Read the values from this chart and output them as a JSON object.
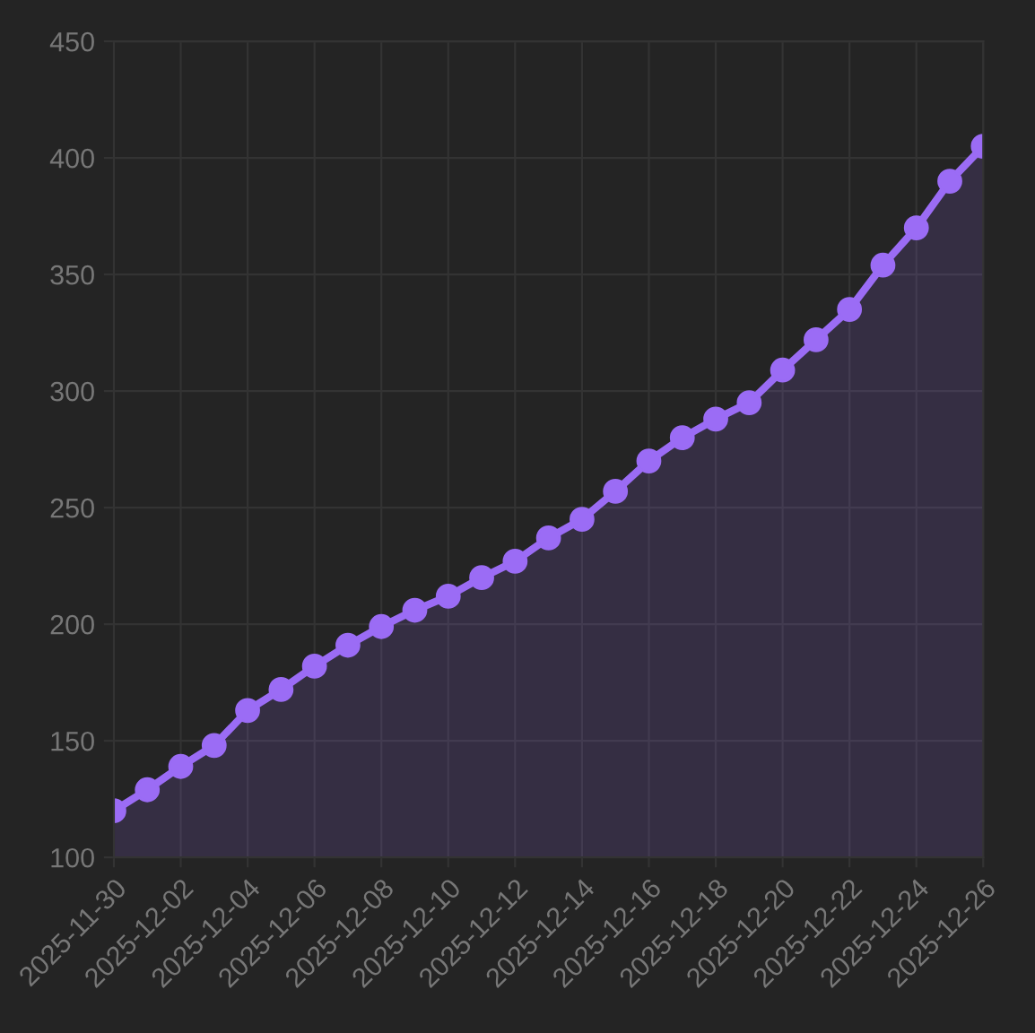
{
  "chart_data": {
    "type": "area",
    "x": [
      "2025-11-30",
      "2025-12-01",
      "2025-12-02",
      "2025-12-03",
      "2025-12-04",
      "2025-12-05",
      "2025-12-06",
      "2025-12-07",
      "2025-12-08",
      "2025-12-09",
      "2025-12-10",
      "2025-12-11",
      "2025-12-12",
      "2025-12-13",
      "2025-12-14",
      "2025-12-15",
      "2025-12-16",
      "2025-12-17",
      "2025-12-18",
      "2025-12-19",
      "2025-12-20",
      "2025-12-21",
      "2025-12-22",
      "2025-12-23",
      "2025-12-24",
      "2025-12-25",
      "2025-12-26"
    ],
    "series": [
      {
        "color": "#9b6cf5",
        "values": [
          120,
          129,
          139,
          148,
          163,
          172,
          182,
          191,
          199,
          206,
          212,
          220,
          227,
          237,
          245,
          257,
          270,
          280,
          288,
          295,
          309,
          322,
          335,
          354,
          370,
          390,
          405
        ]
      }
    ],
    "xlim": [
      "2025-11-30",
      "2025-12-26"
    ],
    "xticks": [
      "2025-11-30",
      "2025-12-02",
      "2025-12-04",
      "2025-12-06",
      "2025-12-08",
      "2025-12-10",
      "2025-12-12",
      "2025-12-14",
      "2025-12-16",
      "2025-12-18",
      "2025-12-20",
      "2025-12-22",
      "2025-12-24",
      "2025-12-26"
    ],
    "ylim": [
      100,
      450
    ],
    "yticks": [
      100,
      150,
      200,
      250,
      300,
      350,
      400,
      450
    ],
    "grid": true,
    "marker": "circle",
    "line_style": "solid"
  }
}
